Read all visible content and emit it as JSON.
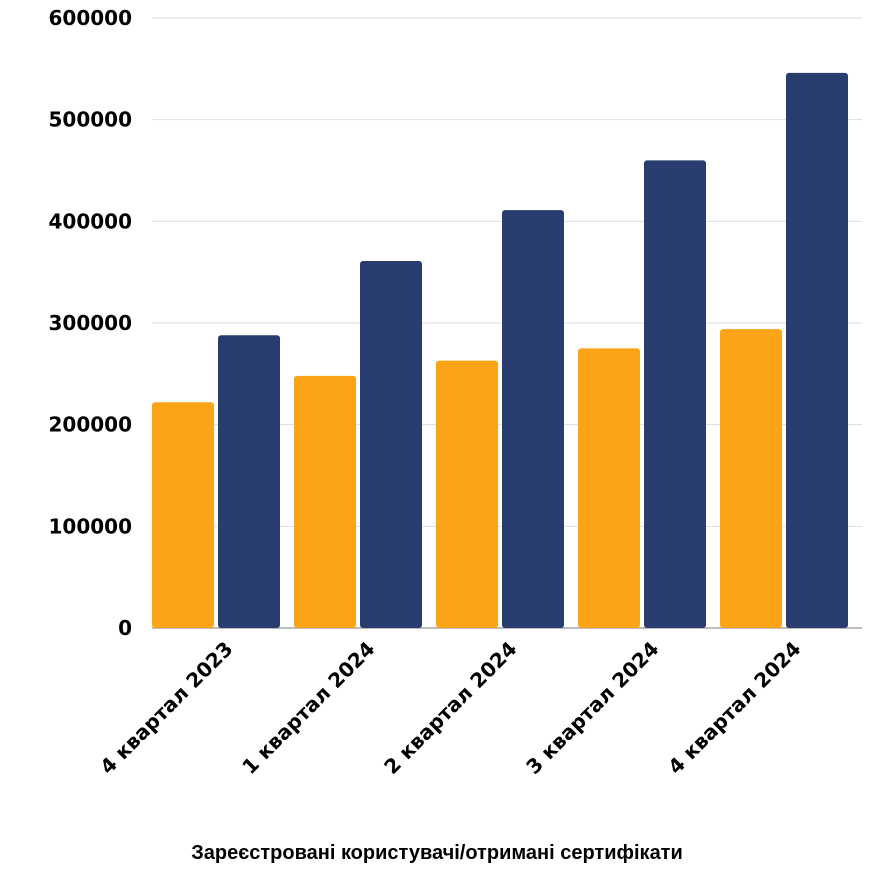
{
  "chart_data": {
    "type": "bar",
    "categories": [
      "4 квартал 2023",
      "1 квартал 2024",
      "2 квартал 2024",
      "3 квартал 2024",
      "4 квартал 2024"
    ],
    "series": [
      {
        "values": [
          222000,
          248000,
          263000,
          275000,
          294000
        ],
        "color": "#FBA418"
      },
      {
        "values": [
          288000,
          361000,
          411000,
          460000,
          546000
        ],
        "color": "#283D6D"
      }
    ],
    "yticks": [
      "0",
      "100000",
      "200000",
      "300000",
      "400000",
      "500000",
      "600000"
    ],
    "ylim": [
      0,
      600000
    ],
    "grid": true,
    "xlabel": "Зареєстровані користувачі/отримані сертифікати",
    "ylabel": "",
    "title": ""
  }
}
